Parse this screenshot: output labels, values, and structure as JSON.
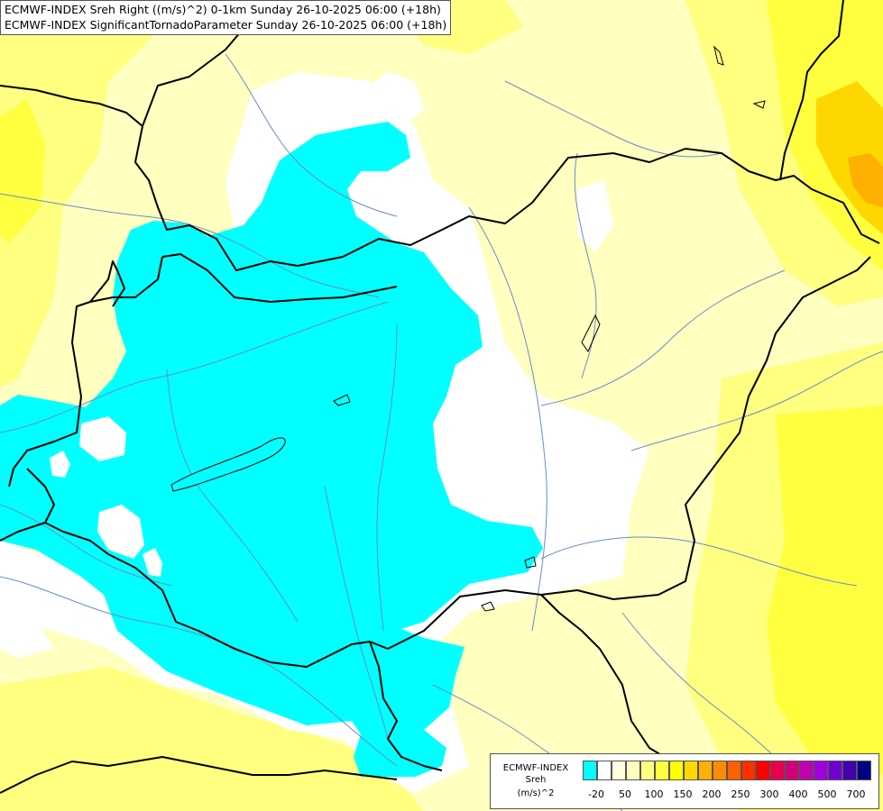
{
  "titles": {
    "line1": "ECMWF-INDEX Sreh Right ((m/s)^2) 0-1km Sunday 26-10-2025 06:00 (+18h)",
    "line2": "ECMWF-INDEX SignificantTornadoParameter Sunday 26-10-2025 06:00 (+18h)"
  },
  "legend": {
    "label_line1": "ECMWF-INDEX",
    "label_line2": "Sreh",
    "label_line3": "(m/s)^2",
    "colors": [
      "#00ffff",
      "#ffffff",
      "#ffffe0",
      "#ffffc0",
      "#ffff80",
      "#ffff40",
      "#ffff00",
      "#ffd700",
      "#ffb000",
      "#ff8c00",
      "#ff6000",
      "#ff3000",
      "#ff0000",
      "#e8004c",
      "#d0007c",
      "#c000b0",
      "#a000e0",
      "#7000d0",
      "#4000b0",
      "#000080"
    ],
    "ticks": [
      "-20",
      "50",
      "100",
      "150",
      "200",
      "250",
      "300",
      "400",
      "500",
      "700"
    ]
  }
}
